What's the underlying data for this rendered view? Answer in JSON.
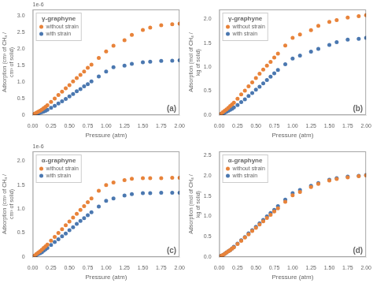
{
  "chart_data": [
    {
      "type": "scatter",
      "title": "γ-graphyne",
      "xlabel": "Pressure (atm)",
      "ylabel": "Adsorption (cm³ of CH₄ / cm³ of solid)",
      "annotations": [
        "(a)",
        "1e-6"
      ],
      "x": [
        0.025,
        0.05,
        0.075,
        0.1,
        0.125,
        0.15,
        0.175,
        0.2,
        0.25,
        0.3,
        0.35,
        0.4,
        0.45,
        0.5,
        0.55,
        0.6,
        0.65,
        0.7,
        0.75,
        0.8,
        0.9,
        1.0,
        1.1,
        1.25,
        1.35,
        1.5,
        1.6,
        1.75,
        1.9,
        2.0
      ],
      "series": [
        {
          "name": "without strain",
          "color": "#E8833A",
          "values": [
            4e-08,
            7e-08,
            1e-07,
            1.3e-07,
            1.7e-07,
            2.1e-07,
            2.5e-07,
            3e-07,
            4e-07,
            5e-07,
            6.1e-07,
            7.1e-07,
            8.1e-07,
            9.1e-07,
            1.02e-06,
            1.12e-06,
            1.22e-06,
            1.32e-06,
            1.43e-06,
            1.53e-06,
            1.73e-06,
            1.93e-06,
            2.1e-06,
            2.27e-06,
            2.43e-06,
            2.58e-06,
            2.65e-06,
            2.72e-06,
            2.75e-06,
            2.77e-06
          ]
        },
        {
          "name": "with strain",
          "color": "#4B78B0",
          "values": [
            2e-08,
            3e-08,
            5e-08,
            7e-08,
            9e-08,
            1.1e-07,
            1.3e-07,
            1.6e-07,
            2.2e-07,
            2.8e-07,
            3.5e-07,
            4.2e-07,
            4.9e-07,
            5.7e-07,
            6.4e-07,
            7.2e-07,
            7.9e-07,
            8.7e-07,
            9.4e-07,
            1.02e-06,
            1.17e-06,
            1.32e-06,
            1.45e-06,
            1.5e-06,
            1.55e-06,
            1.6e-06,
            1.62e-06,
            1.64e-06,
            1.65e-06,
            1.66e-06
          ]
        }
      ],
      "xlim": [
        0,
        2.0
      ],
      "xticks": [
        {
          "value": 0.0,
          "label": "0.00"
        },
        0.25,
        {
          "value": 0.5,
          "label": "0.50"
        },
        0.75,
        {
          "value": 1.0,
          "label": "1.00"
        },
        1.25,
        {
          "value": 1.5,
          "label": "1.50"
        },
        1.75,
        {
          "value": 2.0,
          "label": "2.00"
        }
      ],
      "ylim": [
        0,
        3.2e-06
      ],
      "yticks": [
        0,
        {
          "value": 5e-07,
          "label": "0.5"
        },
        {
          "value": 1e-06,
          "label": "1.0"
        },
        {
          "value": 1.5e-06,
          "label": "1.5"
        },
        {
          "value": 2e-06,
          "label": "2.0"
        },
        {
          "value": 2.5e-06,
          "label": "2.5"
        },
        {
          "value": 3e-06,
          "label": "3.0"
        }
      ],
      "grid": false,
      "legend": "upper left"
    },
    {
      "type": "scatter",
      "title": "γ-graphyne",
      "xlabel": "Pressure (atm)",
      "ylabel": "Adsorption (mol of CH₄ / kg of solid)",
      "annotations": [
        "(b)"
      ],
      "x": [
        0.025,
        0.05,
        0.075,
        0.1,
        0.125,
        0.15,
        0.175,
        0.2,
        0.25,
        0.3,
        0.35,
        0.4,
        0.45,
        0.5,
        0.55,
        0.6,
        0.65,
        0.7,
        0.75,
        0.8,
        0.9,
        1.0,
        1.1,
        1.25,
        1.35,
        1.5,
        1.6,
        1.75,
        1.9,
        2.0
      ],
      "series": [
        {
          "name": "without strain",
          "color": "#E8833A",
          "values": [
            0.03,
            0.06,
            0.09,
            0.12,
            0.15,
            0.19,
            0.22,
            0.26,
            0.34,
            0.43,
            0.51,
            0.6,
            0.68,
            0.77,
            0.86,
            0.95,
            1.03,
            1.11,
            1.2,
            1.28,
            1.45,
            1.61,
            1.68,
            1.77,
            1.86,
            1.94,
            1.98,
            2.03,
            2.06,
            2.08
          ]
        },
        {
          "name": "with strain",
          "color": "#4B78B0",
          "values": [
            0.02,
            0.03,
            0.05,
            0.07,
            0.09,
            0.11,
            0.13,
            0.16,
            0.21,
            0.27,
            0.33,
            0.4,
            0.46,
            0.53,
            0.59,
            0.66,
            0.73,
            0.8,
            0.87,
            0.94,
            1.06,
            1.18,
            1.24,
            1.32,
            1.38,
            1.46,
            1.52,
            1.57,
            1.59,
            1.61
          ]
        }
      ],
      "xlim": [
        0,
        2.0
      ],
      "xticks": [
        {
          "value": 0.0,
          "label": "0.00"
        },
        0.25,
        {
          "value": 0.5,
          "label": "0.50"
        },
        0.75,
        {
          "value": 1.0,
          "label": "1.00"
        },
        1.25,
        {
          "value": 1.5,
          "label": "1.50"
        },
        1.75,
        {
          "value": 2.0,
          "label": "2.00"
        }
      ],
      "ylim": [
        0,
        2.2
      ],
      "yticks": [
        {
          "value": 0.0,
          "label": "0.0"
        },
        0.5,
        {
          "value": 1.0,
          "label": "1.0"
        },
        1.5,
        {
          "value": 2.0,
          "label": "2.0"
        }
      ],
      "grid": false,
      "legend": "upper left"
    },
    {
      "type": "scatter",
      "title": "α-graphyne",
      "xlabel": "Pressure (atm)",
      "ylabel": "Adsorption (cm³ of CH₄ / cm³ of solid)",
      "annotations": [
        "(c)",
        "1e-6"
      ],
      "x": [
        0.025,
        0.05,
        0.075,
        0.1,
        0.125,
        0.15,
        0.175,
        0.2,
        0.25,
        0.3,
        0.35,
        0.4,
        0.45,
        0.5,
        0.55,
        0.6,
        0.65,
        0.7,
        0.75,
        0.8,
        0.9,
        1.0,
        1.1,
        1.25,
        1.35,
        1.5,
        1.6,
        1.75,
        1.9,
        2.0
      ],
      "series": [
        {
          "name": "without strain",
          "color": "#E8833A",
          "values": [
            3e-08,
            6e-08,
            9e-08,
            1.2e-07,
            1.5e-07,
            1.9e-07,
            2.2e-07,
            2.6e-07,
            3.4e-07,
            4.2e-07,
            5e-07,
            5.8e-07,
            6.6e-07,
            7.4e-07,
            8.2e-07,
            9e-07,
            9.8e-07,
            1.06e-06,
            1.14e-06,
            1.22e-06,
            1.38e-06,
            1.5e-06,
            1.55e-06,
            1.6e-06,
            1.63e-06,
            1.64e-06,
            1.64e-06,
            1.64e-06,
            1.65e-06,
            1.65e-06
          ]
        },
        {
          "name": "with strain",
          "color": "#4B78B0",
          "values": [
            2e-08,
            4e-08,
            6e-08,
            8e-08,
            1e-07,
            1.3e-07,
            1.6e-07,
            1.9e-07,
            2.5e-07,
            3.1e-07,
            3.7e-07,
            4.3e-07,
            4.9e-07,
            5.6e-07,
            6.2e-07,
            6.9e-07,
            7.5e-07,
            8.1e-07,
            8.7e-07,
            9.3e-07,
            1.05e-06,
            1.17e-06,
            1.22e-06,
            1.28e-06,
            1.31e-06,
            1.33e-06,
            1.33e-06,
            1.34e-06,
            1.34e-06,
            1.34e-06
          ]
        }
      ],
      "xlim": [
        0,
        2.0
      ],
      "xticks": [
        {
          "value": 0.0,
          "label": "0.00"
        },
        0.25,
        {
          "value": 0.5,
          "label": "0.50"
        },
        0.75,
        {
          "value": 1.0,
          "label": "1.00"
        },
        1.25,
        {
          "value": 1.5,
          "label": "1.50"
        },
        1.75,
        {
          "value": 2.0,
          "label": "2.00"
        }
      ],
      "ylim": [
        0,
        2.2e-06
      ],
      "yticks": [
        0,
        {
          "value": 5e-07,
          "label": "0.5"
        },
        {
          "value": 1e-06,
          "label": "1.0"
        },
        {
          "value": 1.5e-06,
          "label": "1.5"
        },
        {
          "value": 2e-06,
          "label": "2.0"
        }
      ],
      "grid": false,
      "legend": "upper left"
    },
    {
      "type": "scatter",
      "title": "α-graphyne",
      "xlabel": "Pressure (atm)",
      "ylabel": "Adsorption (mol of CH₄ / kg of solid)",
      "annotations": [
        "(d)"
      ],
      "x": [
        0.025,
        0.05,
        0.075,
        0.1,
        0.125,
        0.15,
        0.175,
        0.2,
        0.25,
        0.3,
        0.35,
        0.4,
        0.45,
        0.5,
        0.55,
        0.6,
        0.65,
        0.7,
        0.75,
        0.8,
        0.9,
        1.0,
        1.1,
        1.25,
        1.35,
        1.5,
        1.6,
        1.75,
        1.9,
        2.0
      ],
      "series": [
        {
          "name": "without strain",
          "color": "#E8833A",
          "values": [
            0.03,
            0.05,
            0.08,
            0.11,
            0.14,
            0.17,
            0.21,
            0.24,
            0.32,
            0.4,
            0.48,
            0.56,
            0.64,
            0.72,
            0.8,
            0.88,
            0.96,
            1.04,
            1.12,
            1.2,
            1.36,
            1.52,
            1.6,
            1.72,
            1.8,
            1.88,
            1.92,
            1.96,
            1.99,
            2.01
          ]
        },
        {
          "name": "with strain",
          "color": "#4B78B0",
          "values": [
            0.03,
            0.05,
            0.08,
            0.11,
            0.14,
            0.17,
            0.21,
            0.25,
            0.33,
            0.41,
            0.49,
            0.58,
            0.66,
            0.74,
            0.83,
            0.91,
            1.0,
            1.08,
            1.16,
            1.25,
            1.41,
            1.57,
            1.65,
            1.75,
            1.82,
            1.9,
            1.94,
            1.98,
            2.0,
            2.02
          ]
        }
      ],
      "xlim": [
        0,
        2.0
      ],
      "xticks": [
        {
          "value": 0.0,
          "label": "0.00"
        },
        0.25,
        {
          "value": 0.5,
          "label": "0.50"
        },
        0.75,
        {
          "value": 1.0,
          "label": "1.00"
        },
        1.25,
        {
          "value": 1.5,
          "label": "1.50"
        },
        1.75,
        {
          "value": 2.0,
          "label": "2.00"
        }
      ],
      "ylim": [
        0,
        2.6
      ],
      "yticks": [
        {
          "value": 0.0,
          "label": "0.0"
        },
        0.5,
        {
          "value": 1.0,
          "label": "1.0"
        },
        1.5,
        {
          "value": 2.0,
          "label": "2.0"
        },
        2.5
      ],
      "grid": false,
      "legend": "upper left"
    }
  ]
}
